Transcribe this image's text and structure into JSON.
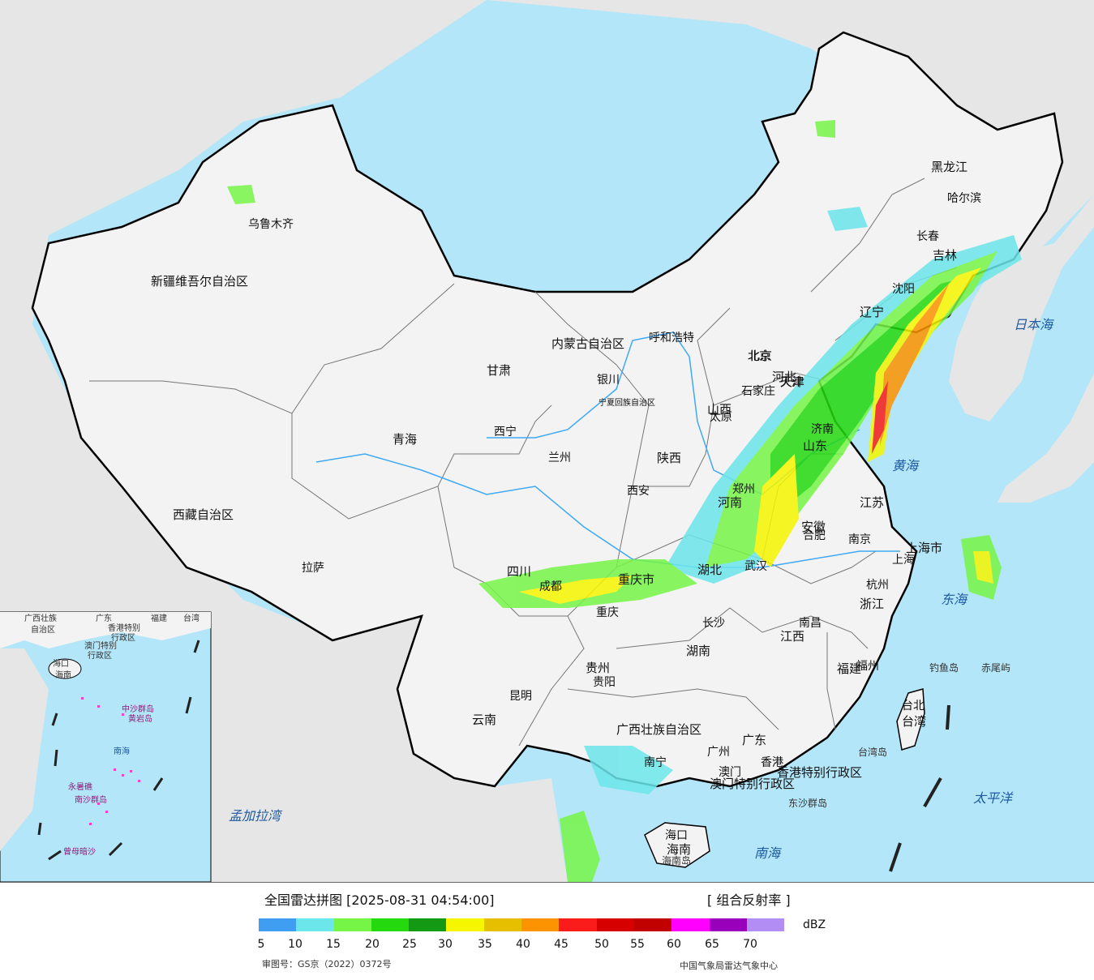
{
  "colors": {
    "sea": "#b3e6f8",
    "foreign_land": "#e6e6e6",
    "china_land": "#f3f3f3",
    "border": "#000000",
    "river": "#3fa9f5"
  },
  "map": {
    "provinces": [
      "新疆维吾尔自治区",
      "西藏自治区",
      "青海",
      "甘肃",
      "内蒙古自治区",
      "四川",
      "云南",
      "广西壮族自治区",
      "广东",
      "湖南",
      "湖北",
      "河南",
      "河北",
      "山东",
      "山西",
      "陕西",
      "贵州",
      "江西",
      "福建",
      "浙江",
      "江苏",
      "安徽",
      "黑龙江",
      "吉林",
      "辽宁",
      "重庆市",
      "上海市",
      "台湾",
      "海南",
      "宁夏回族自治区",
      "北京",
      "天津",
      "香港特别行政区",
      "澳门特别行政区"
    ],
    "cities": [
      "乌鲁木齐",
      "拉萨",
      "西宁",
      "兰州",
      "银川",
      "呼和浩特",
      "北京",
      "天津",
      "石家庄",
      "太原",
      "西安",
      "郑州",
      "济南",
      "沈阳",
      "长春",
      "哈尔滨",
      "南京",
      "合肥",
      "上海",
      "杭州",
      "武汉",
      "长沙",
      "南昌",
      "福州",
      "成都",
      "重庆",
      "贵阳",
      "昆明",
      "南宁",
      "广州",
      "澳门",
      "香港",
      "海口",
      "台北"
    ],
    "seas": [
      "日本海",
      "黄海",
      "东海",
      "南海",
      "太平洋",
      "孟加拉湾"
    ],
    "islands": [
      "钓鱼岛",
      "赤尾屿",
      "台湾岛",
      "东沙群岛",
      "海南岛"
    ]
  },
  "inset": {
    "labels": [
      "广西壮族",
      "自治区",
      "广东",
      "福建",
      "台湾",
      "香港特别",
      "行政区",
      "澳门特别",
      "行政区",
      "海口",
      "海南",
      "南海",
      "中沙群岛",
      "黄岩岛",
      "永暑礁",
      "南沙群岛",
      "曾母暗沙"
    ]
  },
  "legend": {
    "title": "全国雷达拼图 [2025-08-31 04:54:00]",
    "product": "[ 组合反射率 ]",
    "unit": "dBZ",
    "colors": [
      "#3f9ef2",
      "#6be6ea",
      "#76f546",
      "#25d90f",
      "#139913",
      "#f6f600",
      "#e6c000",
      "#fd9300",
      "#fa1b1b",
      "#d60000",
      "#c10000",
      "#ff00ff",
      "#9900bb",
      "#b28ef4"
    ],
    "ticks": [
      "5",
      "10",
      "15",
      "20",
      "25",
      "30",
      "35",
      "40",
      "45",
      "50",
      "55",
      "60",
      "65",
      "70"
    ],
    "review_number": "审图号：GS京（2022）0372号",
    "agency": "中国气象局雷达气象中心"
  }
}
